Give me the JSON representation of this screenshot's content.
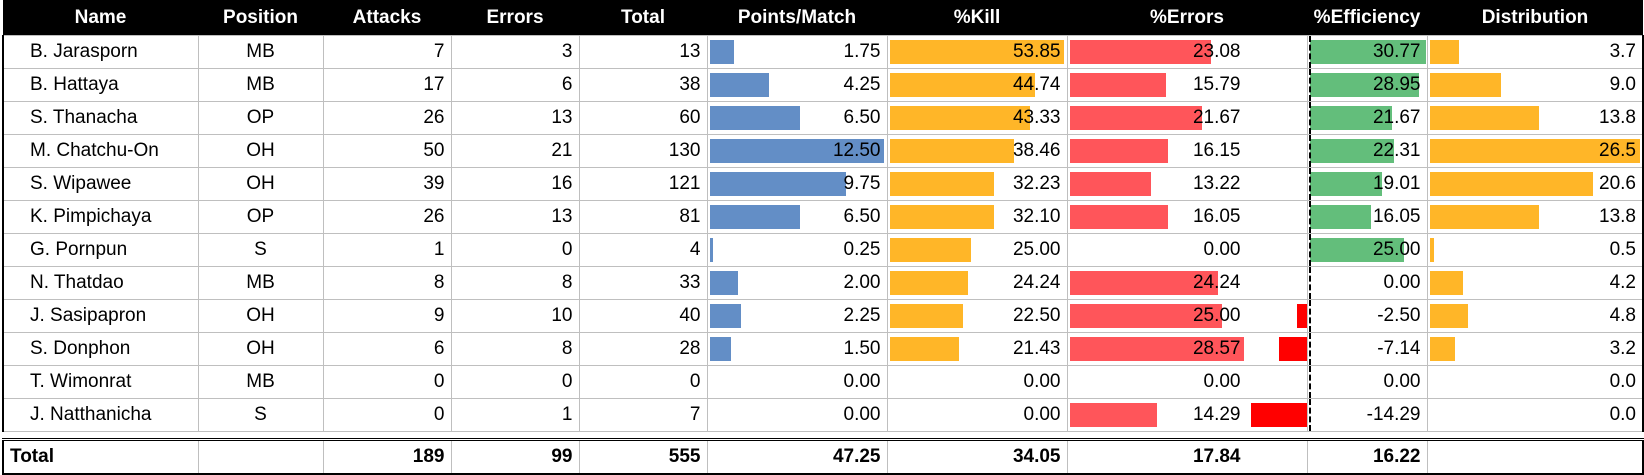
{
  "headers": {
    "name": "Name",
    "position": "Position",
    "attacks": "Attacks",
    "errors": "Errors",
    "total": "Total",
    "points_match": "Points/Match",
    "kill_pct": "%Kill",
    "errors_pct": "%Errors",
    "efficiency_pct": "%Efficiency",
    "distribution": "Distribution"
  },
  "colors": {
    "points_bar": "#638ec6",
    "kill_bar": "#ffb628",
    "errors_bar": "#ff555a",
    "efficiency_pos_bar": "#63be7b",
    "efficiency_neg_bar": "#ff0000",
    "distribution_bar": "#ffb628"
  },
  "rows": [
    {
      "name": "B. Jarasporn",
      "position": "MB",
      "attacks": "7",
      "errors": "3",
      "total": "13",
      "points_match": "1.75",
      "kill_pct": "53.85",
      "errors_pct": "23.08",
      "efficiency_pct": "30.77",
      "distribution": "3.7"
    },
    {
      "name": "B. Hattaya",
      "position": "MB",
      "attacks": "17",
      "errors": "6",
      "total": "38",
      "points_match": "4.25",
      "kill_pct": "44.74",
      "errors_pct": "15.79",
      "efficiency_pct": "28.95",
      "distribution": "9.0"
    },
    {
      "name": "S. Thanacha",
      "position": "OP",
      "attacks": "26",
      "errors": "13",
      "total": "60",
      "points_match": "6.50",
      "kill_pct": "43.33",
      "errors_pct": "21.67",
      "efficiency_pct": "21.67",
      "distribution": "13.8"
    },
    {
      "name": "M. Chatchu-On",
      "position": "OH",
      "attacks": "50",
      "errors": "21",
      "total": "130",
      "points_match": "12.50",
      "kill_pct": "38.46",
      "errors_pct": "16.15",
      "efficiency_pct": "22.31",
      "distribution": "26.5"
    },
    {
      "name": "S. Wipawee",
      "position": "OH",
      "attacks": "39",
      "errors": "16",
      "total": "121",
      "points_match": "9.75",
      "kill_pct": "32.23",
      "errors_pct": "13.22",
      "efficiency_pct": "19.01",
      "distribution": "20.6"
    },
    {
      "name": "K. Pimpichaya",
      "position": "OP",
      "attacks": "26",
      "errors": "13",
      "total": "81",
      "points_match": "6.50",
      "kill_pct": "32.10",
      "errors_pct": "16.05",
      "efficiency_pct": "16.05",
      "distribution": "13.8"
    },
    {
      "name": "G. Pornpun",
      "position": "S",
      "attacks": "1",
      "errors": "0",
      "total": "4",
      "points_match": "0.25",
      "kill_pct": "25.00",
      "errors_pct": "0.00",
      "efficiency_pct": "25.00",
      "distribution": "0.5"
    },
    {
      "name": "N. Thatdao",
      "position": "MB",
      "attacks": "8",
      "errors": "8",
      "total": "33",
      "points_match": "2.00",
      "kill_pct": "24.24",
      "errors_pct": "24.24",
      "efficiency_pct": "0.00",
      "distribution": "4.2"
    },
    {
      "name": "J. Sasipapron",
      "position": "OH",
      "attacks": "9",
      "errors": "10",
      "total": "40",
      "points_match": "2.25",
      "kill_pct": "22.50",
      "errors_pct": "25.00",
      "efficiency_pct": "-2.50",
      "distribution": "4.8"
    },
    {
      "name": "S. Donphon",
      "position": "OH",
      "attacks": "6",
      "errors": "8",
      "total": "28",
      "points_match": "1.50",
      "kill_pct": "21.43",
      "errors_pct": "28.57",
      "efficiency_pct": "-7.14",
      "distribution": "3.2"
    },
    {
      "name": "T. Wimonrat",
      "position": "MB",
      "attacks": "0",
      "errors": "0",
      "total": "0",
      "points_match": "0.00",
      "kill_pct": "0.00",
      "errors_pct": "0.00",
      "efficiency_pct": "0.00",
      "distribution": "0.0"
    },
    {
      "name": "J. Natthanicha",
      "position": "S",
      "attacks": "0",
      "errors": "1",
      "total": "7",
      "points_match": "0.00",
      "kill_pct": "0.00",
      "errors_pct": "14.29",
      "efficiency_pct": "-14.29",
      "distribution": "0.0"
    }
  ],
  "totals": {
    "label": "Total",
    "attacks": "189",
    "errors": "99",
    "total": "555",
    "points_match": "47.25",
    "kill_pct": "34.05",
    "errors_pct": "17.84",
    "efficiency_pct": "16.22"
  }
}
